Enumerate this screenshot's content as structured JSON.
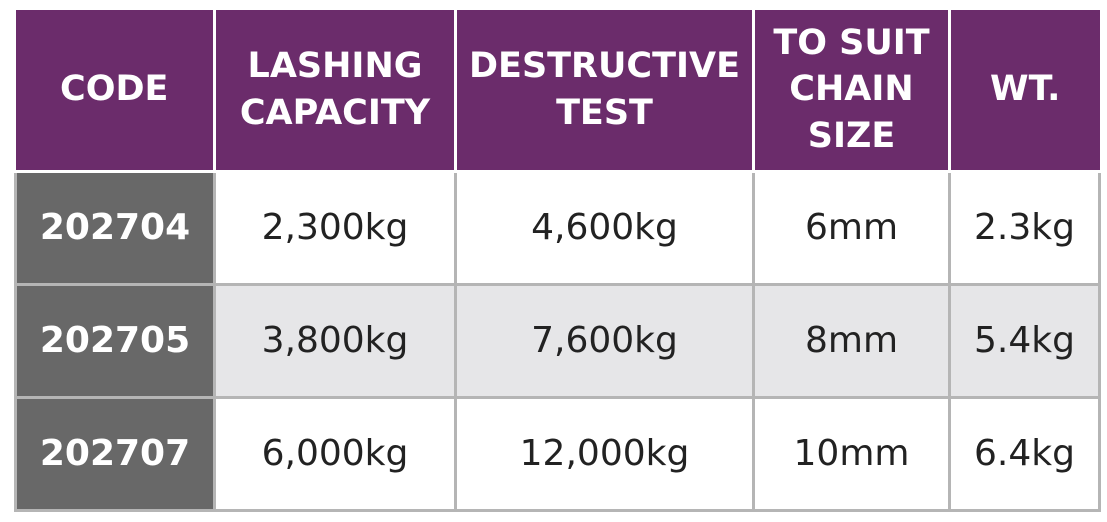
{
  "columns": [
    [
      "CODE"
    ],
    [
      "LASHING",
      "CAPACITY"
    ],
    [
      "DESTRUCTIVE",
      "TEST"
    ],
    [
      "TO SUIT",
      "CHAIN",
      "SIZE"
    ],
    [
      "WT."
    ]
  ],
  "rows": [
    {
      "code": "202704",
      "lashing_capacity": "2,300kg",
      "destructive_test": "4,600kg",
      "chain_size": "6mm",
      "weight": "2.3kg"
    },
    {
      "code": "202705",
      "lashing_capacity": "3,800kg",
      "destructive_test": "7,600kg",
      "chain_size": "8mm",
      "weight": "5.4kg"
    },
    {
      "code": "202707",
      "lashing_capacity": "6,000kg",
      "destructive_test": "12,000kg",
      "chain_size": "10mm",
      "weight": "6.4kg"
    }
  ],
  "colors": {
    "header_bg": "#6b2c6b",
    "code_bg": "#686868",
    "shaded_row_bg": "#e6e6e8",
    "border": "#b5b5b5"
  }
}
